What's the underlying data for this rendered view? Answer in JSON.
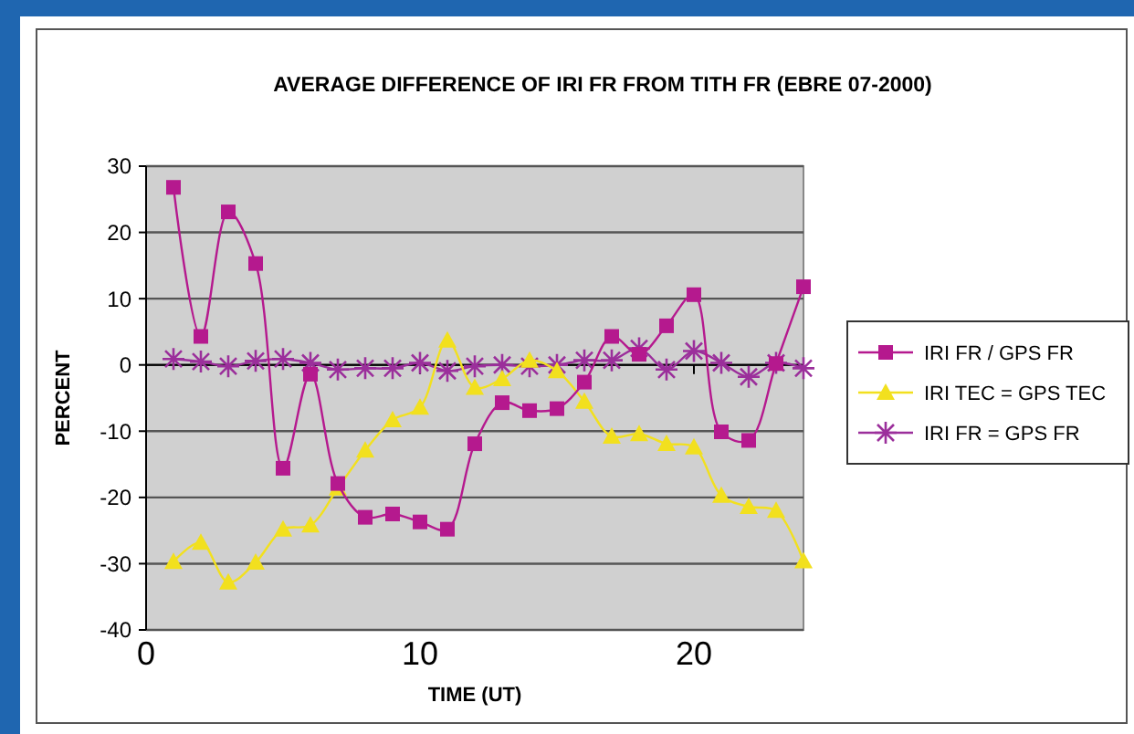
{
  "chart_data": {
    "type": "line",
    "title": "AVERAGE DIFFERENCE OF IRI FR FROM TITH FR (EBRE 07-2000)",
    "xlabel": "TIME (UT)",
    "ylabel": "PERCENT",
    "x": [
      1,
      2,
      3,
      4,
      5,
      6,
      7,
      8,
      9,
      10,
      11,
      12,
      13,
      14,
      15,
      16,
      17,
      18,
      19,
      20,
      21,
      22,
      23,
      24
    ],
    "xlim": [
      0,
      24
    ],
    "xticks": [
      0,
      10,
      20
    ],
    "ylim": [
      -40,
      30
    ],
    "yticks": [
      -40,
      -30,
      -20,
      -10,
      0,
      10,
      20,
      30
    ],
    "grid": "y",
    "legend": "right",
    "series": [
      {
        "name": "IRI FR / GPS FR",
        "color": "#b5198e",
        "marker": "square",
        "values": [
          26.8,
          4.3,
          23.1,
          15.3,
          -15.6,
          -1.4,
          -17.9,
          -23,
          -22.5,
          -23.7,
          -24.8,
          -11.9,
          -5.7,
          -6.9,
          -6.6,
          -2.6,
          4.3,
          1.6,
          5.9,
          10.6,
          -10.1,
          -11.4,
          0.2,
          11.8
        ]
      },
      {
        "name": "IRI TEC = GPS TEC",
        "color": "#f2e01e",
        "marker": "triangle",
        "values": [
          -29.7,
          -26.8,
          -32.8,
          -29.8,
          -24.8,
          -24.2,
          -18.6,
          -12.9,
          -8.3,
          -6.4,
          3.7,
          -3.4,
          -2.1,
          0.7,
          -0.9,
          -5.5,
          -10.8,
          -10.4,
          -11.9,
          -12.4,
          -19.7,
          -21.4,
          -22,
          -29.6
        ]
      },
      {
        "name": "IRI FR = GPS FR",
        "color": "#9b2f9b",
        "marker": "cross",
        "values": [
          0.9,
          0.5,
          -0.2,
          0.6,
          0.9,
          0.3,
          -0.7,
          -0.5,
          -0.5,
          0.3,
          -0.9,
          -0.2,
          0,
          -0.2,
          0,
          0.7,
          0.7,
          2.5,
          -0.7,
          2.1,
          0.3,
          -1.8,
          0.3,
          -0.5
        ]
      }
    ]
  }
}
